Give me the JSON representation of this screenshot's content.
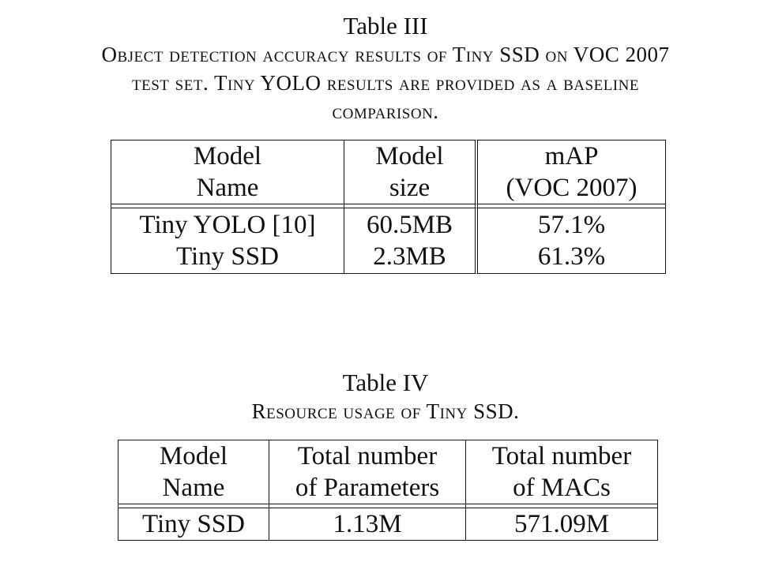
{
  "table3": {
    "label": "Table III",
    "caption_lines": [
      "Object detection accuracy results of Tiny SSD on VOC 2007",
      "test set. Tiny YOLO results are provided as a baseline",
      "comparison."
    ],
    "headers": [
      [
        "Model",
        "Name"
      ],
      [
        "Model",
        "size"
      ],
      [
        "mAP",
        "(VOC 2007)"
      ]
    ],
    "rows": [
      [
        "Tiny YOLO [10]",
        "60.5MB",
        "57.1%"
      ],
      [
        "Tiny SSD",
        "2.3MB",
        "61.3%"
      ]
    ]
  },
  "table4": {
    "label": "Table IV",
    "caption_lines": [
      "Resource usage of Tiny SSD."
    ],
    "headers": [
      [
        "Model",
        "Name"
      ],
      [
        "Total number",
        "of Parameters"
      ],
      [
        "Total number",
        "of MACs"
      ]
    ],
    "rows": [
      [
        "Tiny SSD",
        "1.13M",
        "571.09M"
      ]
    ]
  }
}
